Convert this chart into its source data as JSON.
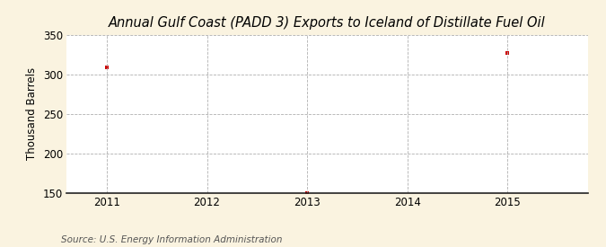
{
  "title": "Annual Gulf Coast (PADD 3) Exports to Iceland of Distillate Fuel Oil",
  "ylabel": "Thousand Barrels",
  "source_text": "Source: U.S. Energy Information Administration",
  "x_data": [
    2011,
    2013,
    2015
  ],
  "y_data": [
    308,
    150,
    327
  ],
  "xlim": [
    2010.6,
    2015.8
  ],
  "ylim": [
    150,
    350
  ],
  "yticks": [
    150,
    200,
    250,
    300,
    350
  ],
  "xticks": [
    2011,
    2012,
    2013,
    2014,
    2015
  ],
  "marker_color": "#cc0000",
  "marker": "s",
  "marker_size": 3.5,
  "bg_color": "#faf3e0",
  "plot_bg_color": "#ffffff",
  "grid_color": "#b0b0b0",
  "grid_style": "--",
  "title_fontsize": 10.5,
  "axis_fontsize": 8.5,
  "tick_fontsize": 8.5,
  "source_fontsize": 7.5
}
